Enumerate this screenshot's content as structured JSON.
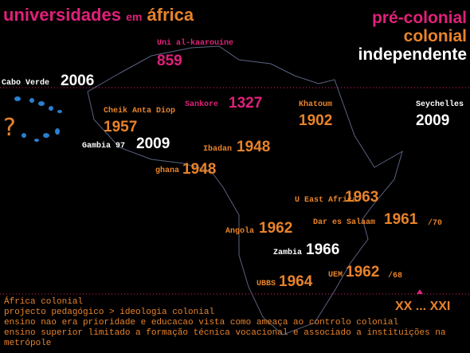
{
  "header": {
    "title_main": "universidades",
    "title_em": "em",
    "title_end": "áfrica"
  },
  "legend": [
    "pré-colonial",
    "colonial",
    "independente"
  ],
  "labels": [
    {
      "name": "Uni al-kaarouine",
      "year": "859"
    },
    {
      "name": "Cabo Verde",
      "year": "2006"
    },
    {
      "name": "Sankore",
      "year": "1327"
    },
    {
      "name": "Cheik Anta Diop",
      "year": "1957"
    },
    {
      "name": "Khatoum",
      "year": "1902"
    },
    {
      "name": "Seychelles",
      "year": "2009"
    },
    {
      "name": "Gambia 97",
      "year": "2009"
    },
    {
      "name": "Ibadan",
      "year": "1948"
    },
    {
      "name": "ghana",
      "year": "1948"
    },
    {
      "name": "U East Africa",
      "year": "1963"
    },
    {
      "name": "Dar es Salaam",
      "year": "1961",
      "suffix": "/70"
    },
    {
      "name": "Angola",
      "year": "1962"
    },
    {
      "name": "Zambia",
      "year": "1966"
    },
    {
      "name": "UBBS",
      "year": "1964"
    },
    {
      "name": "UEM",
      "year": "1962",
      "suffix": "/68"
    }
  ],
  "question": "?",
  "era": "XX ... XXI",
  "notes": [
    "África colonial",
    "projecto pedagógico > ideologia colonial",
    "ensino nao era prioridade e educacao vista como ameaça ao controlo colonial",
    "ensino superior limitado a formação técnica vocacional e associado a instituições na",
    "metrópole"
  ]
}
